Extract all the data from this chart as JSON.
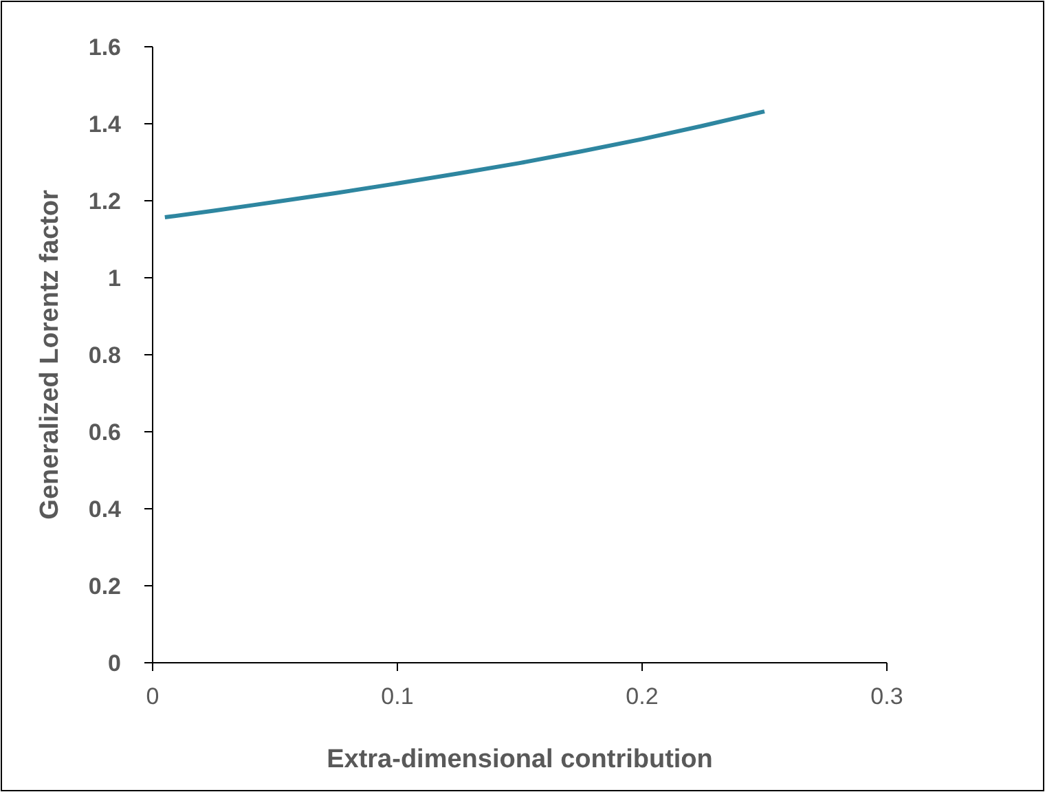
{
  "chart_data": {
    "type": "line",
    "xlabel": "Extra-dimensional contribution",
    "ylabel": "Generalized Lorentz factor",
    "x": [
      0.005,
      0.025,
      0.05,
      0.075,
      0.1,
      0.125,
      0.15,
      0.175,
      0.2,
      0.225,
      0.25
    ],
    "series": [
      {
        "color": "#2e86a0",
        "values": [
          1.157,
          1.174,
          1.197,
          1.22,
          1.245,
          1.271,
          1.298,
          1.328,
          1.36,
          1.395,
          1.432
        ]
      }
    ],
    "xlim": [
      0,
      0.3
    ],
    "xticks": [
      0,
      0.1,
      0.2,
      0.3
    ],
    "ylim": [
      0,
      1.6
    ],
    "yticks": [
      0,
      0.2,
      0.4,
      0.6,
      0.8,
      1,
      1.2,
      1.4,
      1.6
    ],
    "grid": false,
    "marker": "none",
    "line_style": "solid"
  }
}
